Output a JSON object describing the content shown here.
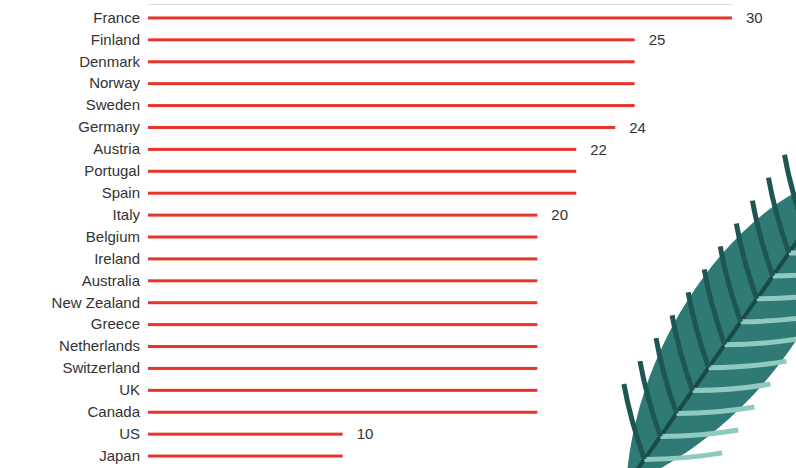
{
  "chart_data": {
    "type": "bar",
    "orientation": "horizontal",
    "categories": [
      "France",
      "Finland",
      "Denmark",
      "Norway",
      "Sweden",
      "Germany",
      "Austria",
      "Portugal",
      "Spain",
      "Italy",
      "Belgium",
      "Ireland",
      "Australia",
      "New Zealand",
      "Greece",
      "Netherlands",
      "Switzerland",
      "UK",
      "Canada",
      "US",
      "Japan"
    ],
    "values": [
      30,
      25,
      25,
      25,
      25,
      24,
      22,
      22,
      22,
      20,
      20,
      20,
      20,
      20,
      20,
      20,
      20,
      20,
      20,
      10,
      10
    ],
    "value_labels": [
      "30",
      "25",
      null,
      null,
      null,
      "24",
      "22",
      null,
      null,
      "20",
      null,
      null,
      null,
      null,
      null,
      null,
      null,
      null,
      null,
      "10",
      null
    ],
    "data_labels": true,
    "color": "#e8352b",
    "xlim": [
      0,
      30
    ],
    "tick_labels": "y",
    "grid": false
  }
}
